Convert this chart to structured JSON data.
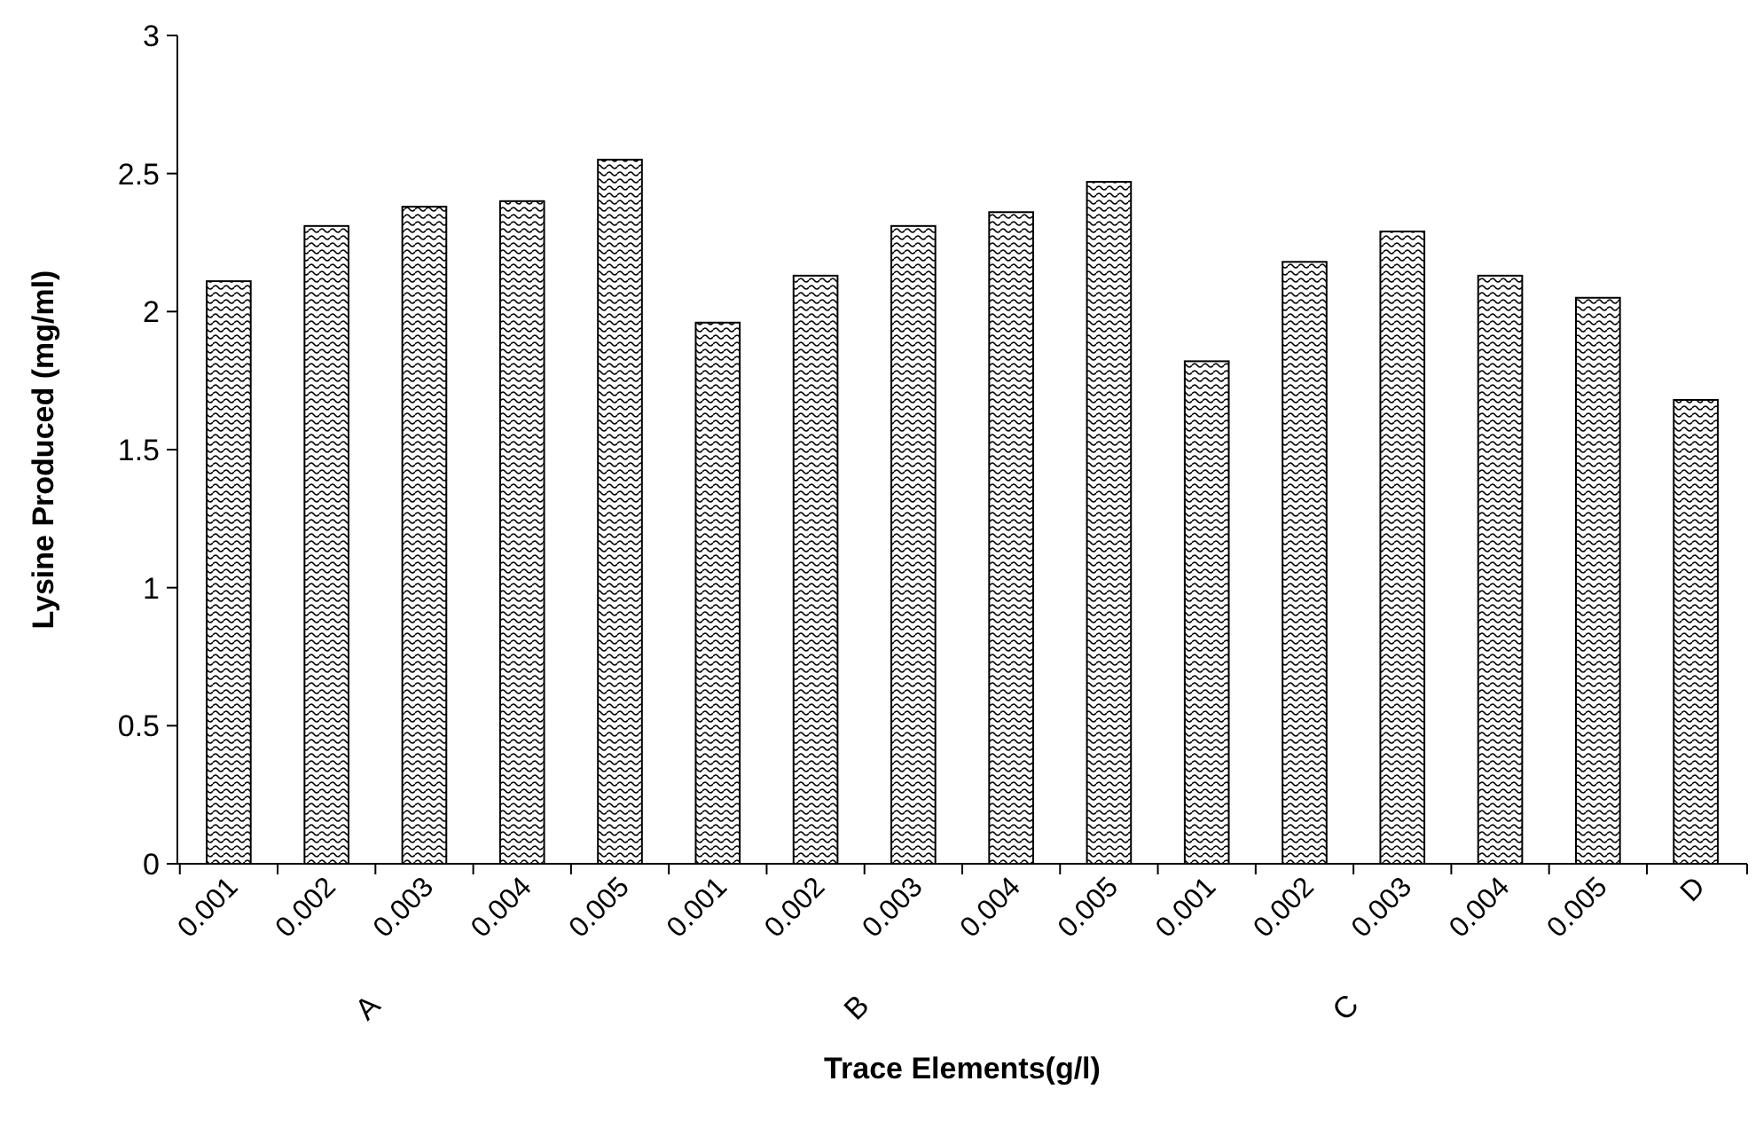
{
  "chart_data": {
    "type": "bar",
    "xlabel": "Trace Elements(g/l)",
    "ylabel": "Lysine Produced (mg/ml)",
    "categories": [
      "0.001",
      "0.002",
      "0.003",
      "0.004",
      "0.005",
      "0.001",
      "0.002",
      "0.003",
      "0.004",
      "0.005",
      "0.001",
      "0.002",
      "0.003",
      "0.004",
      "0.005",
      "D"
    ],
    "values": [
      2.11,
      2.31,
      2.38,
      2.4,
      2.55,
      1.96,
      2.13,
      2.31,
      2.36,
      2.47,
      1.82,
      2.18,
      2.29,
      2.13,
      2.05,
      1.68
    ],
    "color": "#000000",
    "ylim": [
      0,
      3
    ],
    "yticks": [
      0,
      0.5,
      1,
      1.5,
      2,
      2.5,
      3
    ],
    "grid": false,
    "annotations": [
      "A",
      "B",
      "C"
    ]
  }
}
